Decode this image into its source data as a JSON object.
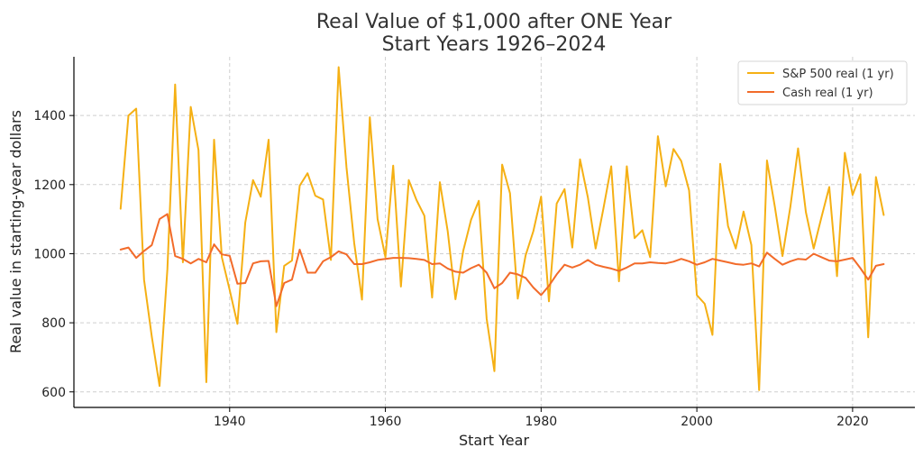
{
  "chart_data": {
    "type": "line",
    "title": [
      "Real Value of $1,000 after ONE Year",
      "Start Years 1926–2024"
    ],
    "xlabel": "Start Year",
    "ylabel": "Real value in starting-year dollars",
    "xlim": [
      1920,
      2028
    ],
    "ylim": [
      555,
      1570
    ],
    "xticks": [
      1940,
      1960,
      1980,
      2000,
      2020
    ],
    "yticks": [
      600,
      800,
      1000,
      1200,
      1400
    ],
    "grid": true,
    "legend_position": "top-right",
    "x": [
      1926,
      1927,
      1928,
      1929,
      1930,
      1931,
      1932,
      1933,
      1934,
      1935,
      1936,
      1937,
      1938,
      1939,
      1940,
      1941,
      1942,
      1943,
      1944,
      1945,
      1946,
      1947,
      1948,
      1949,
      1950,
      1951,
      1952,
      1953,
      1954,
      1955,
      1956,
      1957,
      1958,
      1959,
      1960,
      1961,
      1962,
      1963,
      1964,
      1965,
      1966,
      1967,
      1968,
      1969,
      1970,
      1971,
      1972,
      1973,
      1974,
      1975,
      1976,
      1977,
      1978,
      1979,
      1980,
      1981,
      1982,
      1983,
      1984,
      1985,
      1986,
      1987,
      1988,
      1989,
      1990,
      1991,
      1992,
      1993,
      1994,
      1995,
      1996,
      1997,
      1998,
      1999,
      2000,
      2001,
      2002,
      2003,
      2004,
      2005,
      2006,
      2007,
      2008,
      2009,
      2010,
      2011,
      2012,
      2013,
      2014,
      2015,
      2016,
      2017,
      2018,
      2019,
      2020,
      2021,
      2022,
      2023,
      2024
    ],
    "series": [
      {
        "name": "S&P 500 real (1 yr)",
        "color": "#f5b014",
        "values": [
          1130,
          1400,
          1420,
          925,
          760,
          617,
          955,
          1490,
          975,
          1425,
          1300,
          628,
          1330,
          990,
          895,
          797,
          1090,
          1213,
          1165,
          1330,
          773,
          965,
          980,
          1197,
          1233,
          1168,
          1157,
          982,
          1540,
          1250,
          1030,
          867,
          1395,
          1100,
          990,
          1255,
          905,
          1213,
          1155,
          1110,
          873,
          1207,
          1065,
          868,
          1008,
          1098,
          1153,
          812,
          660,
          1258,
          1175,
          870,
          995,
          1065,
          1165,
          862,
          1145,
          1187,
          1018,
          1273,
          1163,
          1015,
          1130,
          1253,
          920,
          1253,
          1045,
          1068,
          990,
          1340,
          1195,
          1303,
          1268,
          1183,
          880,
          855,
          765,
          1260,
          1080,
          1015,
          1122,
          1025,
          605,
          1270,
          1138,
          993,
          1135,
          1305,
          1120,
          1015,
          1105,
          1193,
          935,
          1292,
          1170,
          1230,
          758,
          1222,
          1112
        ]
      },
      {
        "name": "Cash real (1 yr)",
        "color": "#f26b2a",
        "values": [
          1012,
          1018,
          988,
          1008,
          1025,
          1100,
          1115,
          993,
          985,
          972,
          985,
          975,
          1027,
          998,
          994,
          913,
          915,
          972,
          978,
          979,
          848,
          915,
          925,
          1012,
          945,
          945,
          978,
          990,
          1007,
          998,
          970,
          970,
          975,
          982,
          985,
          988,
          988,
          987,
          985,
          982,
          970,
          972,
          957,
          948,
          945,
          958,
          968,
          945,
          900,
          915,
          945,
          940,
          930,
          902,
          880,
          907,
          940,
          968,
          960,
          968,
          982,
          968,
          962,
          957,
          950,
          960,
          972,
          972,
          975,
          973,
          972,
          977,
          985,
          978,
          968,
          975,
          985,
          980,
          975,
          970,
          968,
          972,
          963,
          1003,
          985,
          968,
          978,
          985,
          983,
          1000,
          990,
          980,
          978,
          983,
          988,
          958,
          925,
          965,
          970
        ]
      }
    ]
  }
}
